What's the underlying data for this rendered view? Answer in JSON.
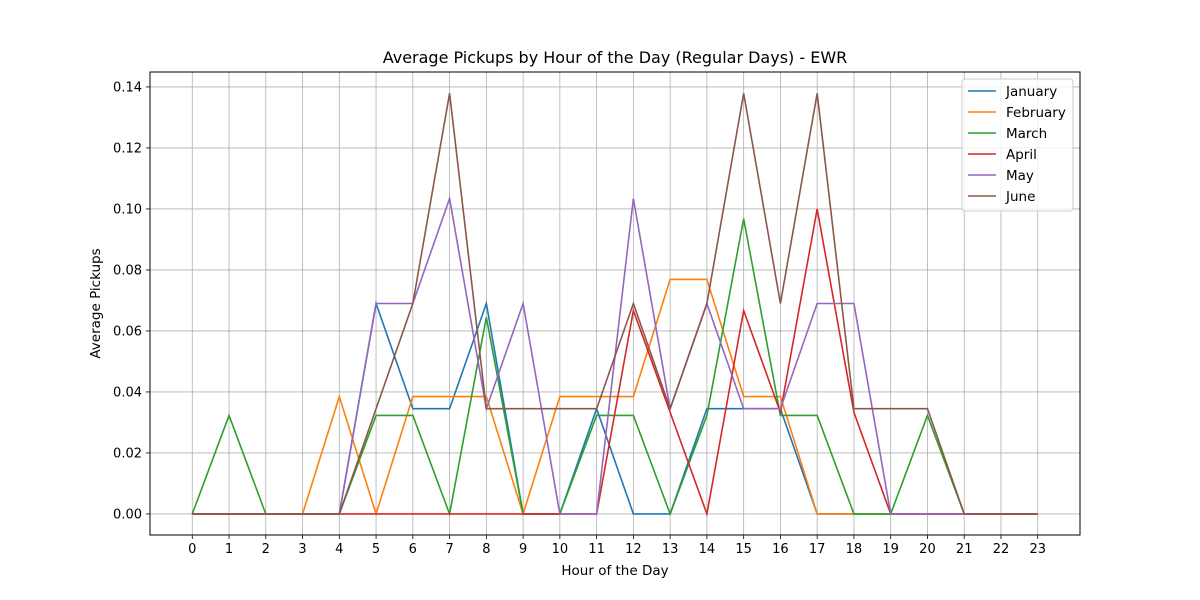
{
  "chart_data": {
    "type": "line",
    "title": "Average Pickups by Hour of the Day (Regular Days) - EWR",
    "xlabel": "Hour of the Day",
    "ylabel": "Average Pickups",
    "x": [
      0,
      1,
      2,
      3,
      4,
      5,
      6,
      7,
      8,
      9,
      10,
      11,
      12,
      13,
      14,
      15,
      16,
      17,
      18,
      19,
      20,
      21,
      22,
      23
    ],
    "x_tick_labels": [
      "0",
      "1",
      "2",
      "3",
      "4",
      "5",
      "6",
      "7",
      "8",
      "9",
      "10",
      "11",
      "12",
      "13",
      "14",
      "15",
      "16",
      "17",
      "18",
      "19",
      "20",
      "21",
      "22",
      "23"
    ],
    "y_tick_labels": [
      "0.00",
      "0.02",
      "0.04",
      "0.06",
      "0.08",
      "0.10",
      "0.12",
      "0.14"
    ],
    "y_ticks": [
      0,
      0.02,
      0.04,
      0.06,
      0.08,
      0.1,
      0.12,
      0.14
    ],
    "xlim": [
      -1.15,
      24.15
    ],
    "ylim": [
      -0.0069,
      0.1449
    ],
    "grid": true,
    "legend_position": "top-right",
    "series": [
      {
        "name": "January",
        "color": "#1f77b4",
        "values": [
          0,
          0,
          0,
          0,
          0,
          0.069,
          0.0345,
          0.0345,
          0.069,
          0,
          0,
          0.0345,
          0,
          0,
          0.0345,
          0.0345,
          0.0345,
          0,
          0,
          0,
          0,
          0,
          0,
          0
        ]
      },
      {
        "name": "February",
        "color": "#ff7f0e",
        "values": [
          0,
          0,
          0,
          0,
          0.0385,
          0,
          0.0385,
          0.0385,
          0.0385,
          0,
          0.0385,
          0.0385,
          0.0385,
          0.0769,
          0.0769,
          0.0385,
          0.0385,
          0,
          0,
          0,
          0,
          0,
          0,
          0
        ]
      },
      {
        "name": "March",
        "color": "#2ca02c",
        "values": [
          0,
          0.0323,
          0,
          0,
          0,
          0.0323,
          0.0323,
          0,
          0.0645,
          0,
          0,
          0.0323,
          0.0323,
          0,
          0.0323,
          0.0968,
          0.0323,
          0.0323,
          0,
          0,
          0.0323,
          0,
          0,
          0
        ]
      },
      {
        "name": "April",
        "color": "#d62728",
        "values": [
          0,
          0,
          0,
          0,
          0,
          0,
          0,
          0,
          0,
          0,
          0,
          0,
          0.0667,
          0.0333,
          0,
          0.0667,
          0.0333,
          0.1,
          0.0333,
          0,
          0,
          0,
          0,
          0
        ]
      },
      {
        "name": "May",
        "color": "#9467bd",
        "values": [
          0,
          0,
          0,
          0,
          0,
          0.069,
          0.069,
          0.1034,
          0.0345,
          0.069,
          0,
          0,
          0.1034,
          0.0345,
          0.069,
          0.0345,
          0.0345,
          0.069,
          0.069,
          0,
          0,
          0,
          0,
          0
        ]
      },
      {
        "name": "June",
        "color": "#8c564b",
        "values": [
          0,
          0,
          0,
          0,
          0,
          0.0345,
          0.069,
          0.1379,
          0.0345,
          0.0345,
          0.0345,
          0.0345,
          0.069,
          0.0345,
          0.069,
          0.1379,
          0.069,
          0.1379,
          0.0345,
          0.0345,
          0.0345,
          0,
          0,
          0
        ]
      }
    ]
  }
}
